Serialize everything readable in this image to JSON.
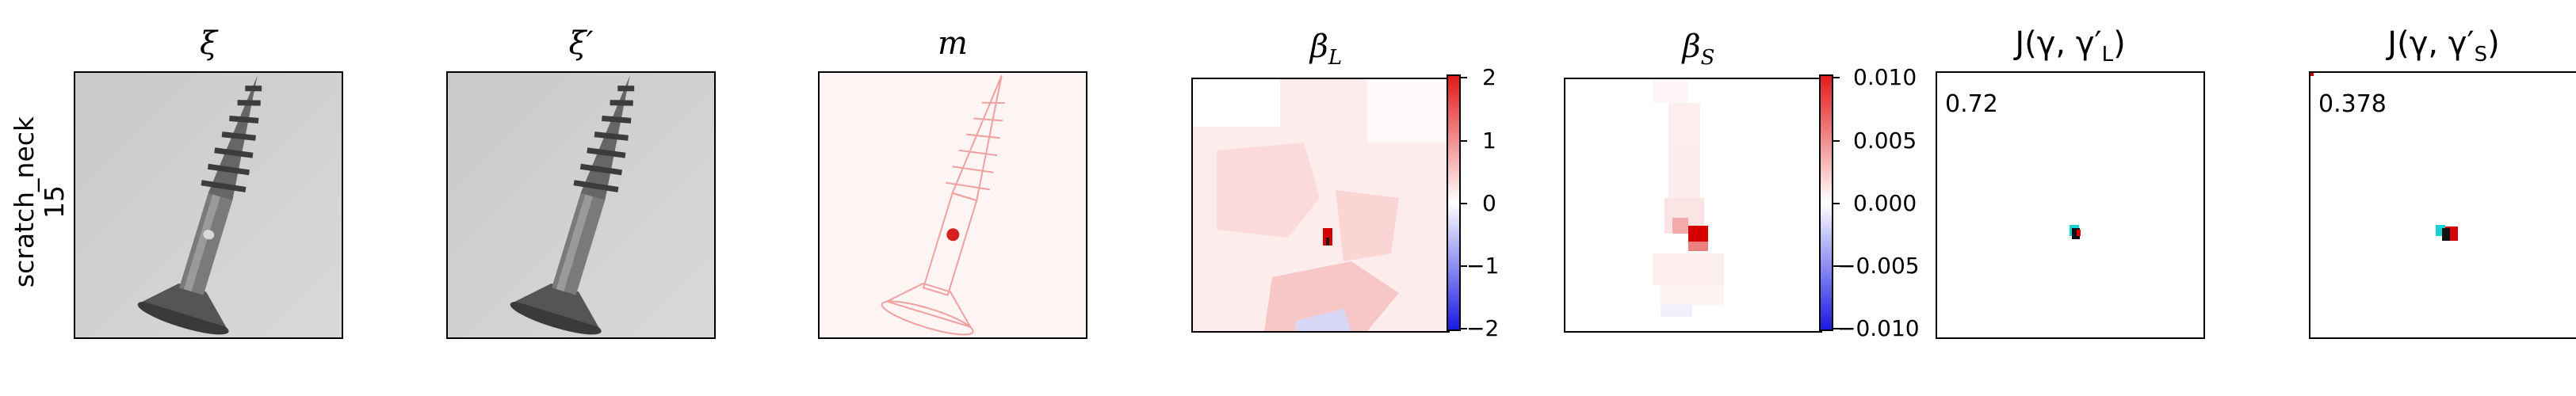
{
  "row_label": {
    "line1": "scratch_neck",
    "line2": "15"
  },
  "panels": [
    {
      "id": "xi",
      "title": "ξ"
    },
    {
      "id": "xi_prime",
      "title": "ξ′"
    },
    {
      "id": "m",
      "title": "m"
    },
    {
      "id": "beta_L",
      "title_main": "β",
      "title_sub": "L"
    },
    {
      "id": "beta_S",
      "title_main": "β",
      "title_sub": "S"
    },
    {
      "id": "J_L",
      "title": "J(γ, γ′",
      "title_sub": "L",
      "title_end": ")",
      "score": "0.72"
    },
    {
      "id": "J_S",
      "title": "J(γ, γ′",
      "title_sub": "S",
      "title_end": ")",
      "score": "0.378"
    }
  ],
  "colorbar_L": {
    "ticks": [
      "2",
      "1",
      "0",
      "−1",
      "−2"
    ]
  },
  "colorbar_S": {
    "ticks": [
      "0.010",
      "0.005",
      "0.000",
      "−0.005",
      "−0.010"
    ]
  },
  "colors": {
    "screw_gray": "#6e6e6e",
    "background_gray": "#d2d2d2",
    "heat_red": "#e31a1c",
    "heat_blue": "#1a1ae3",
    "cyan": "#19d3d3"
  }
}
